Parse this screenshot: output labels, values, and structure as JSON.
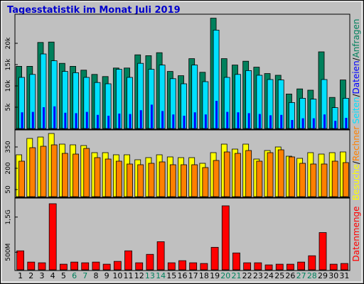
{
  "title": "Tagesstatistik im Monat Juli 2019",
  "separator": "/",
  "x_axis": {
    "categories": [
      "1",
      "2",
      "3",
      "4",
      "5",
      "6",
      "7",
      "8",
      "9",
      "10",
      "11",
      "12",
      "13",
      "14",
      "15",
      "16",
      "17",
      "18",
      "19",
      "20",
      "21",
      "22",
      "23",
      "24",
      "25",
      "26",
      "27",
      "28",
      "29",
      "30",
      "31"
    ],
    "colors": [
      "#000000",
      "#000000",
      "#000000",
      "#000000",
      "#000000",
      "#00805c",
      "#00805c",
      "#000000",
      "#000000",
      "#000000",
      "#000000",
      "#000000",
      "#00805c",
      "#00805c",
      "#000000",
      "#000000",
      "#000000",
      "#000000",
      "#000000",
      "#00805c",
      "#00805c",
      "#000000",
      "#000000",
      "#000000",
      "#000000",
      "#000000",
      "#00805c",
      "#00805c",
      "#000000",
      "#000000",
      "#000000"
    ]
  },
  "chart_data": [
    {
      "type": "bar",
      "ylim": [
        0,
        26500
      ],
      "yticks": [
        {
          "value": 5000,
          "label": "5k"
        },
        {
          "value": 10000,
          "label": "10k"
        },
        {
          "value": 15000,
          "label": "15k"
        },
        {
          "value": 20000,
          "label": "20k"
        }
      ],
      "legend_order": [
        1,
        2,
        0
      ],
      "series": [
        {
          "name": "Anfragen",
          "color": "#00805c",
          "values": [
            14600,
            14600,
            20200,
            20300,
            15300,
            14600,
            13700,
            12700,
            12200,
            14200,
            14200,
            17300,
            17100,
            17800,
            13400,
            12400,
            16400,
            13200,
            25900,
            16400,
            14900,
            15800,
            14400,
            12900,
            12500,
            8100,
            9300,
            9000,
            18000,
            7300,
            11400
          ]
        },
        {
          "name": "Seiten",
          "color": "#00e0ff",
          "values": [
            12000,
            12700,
            17500,
            15900,
            13400,
            13100,
            12000,
            10800,
            10500,
            13900,
            12000,
            15300,
            13900,
            14900,
            11700,
            10500,
            14900,
            11000,
            23100,
            12000,
            12700,
            13600,
            12500,
            11500,
            11400,
            6100,
            7100,
            6900,
            11500,
            4900,
            7100
          ]
        },
        {
          "name": "Dateien",
          "color": "#0000ff",
          "values": [
            3800,
            3900,
            5000,
            5200,
            3700,
            3600,
            3900,
            3200,
            3000,
            3500,
            3400,
            4300,
            5600,
            4100,
            3300,
            3000,
            3800,
            3300,
            6500,
            3900,
            3800,
            3600,
            3400,
            3100,
            3200,
            2000,
            2400,
            2400,
            3300,
            1800,
            2500
          ]
        }
      ]
    },
    {
      "type": "bar",
      "ylim": [
        0,
        460
      ],
      "yticks": [
        50,
        200,
        350
      ],
      "legend_order": [
        0,
        1
      ],
      "series": [
        {
          "name": "Besuche",
          "color": "#ffff00",
          "values": [
            295,
            410,
            420,
            445,
            370,
            365,
            360,
            310,
            310,
            295,
            295,
            260,
            275,
            295,
            280,
            275,
            275,
            235,
            310,
            370,
            335,
            370,
            265,
            325,
            350,
            285,
            270,
            310,
            300,
            310,
            315
          ]
        },
        {
          "name": "Rechner",
          "color": "#ff8000",
          "values": [
            250,
            345,
            355,
            365,
            305,
            300,
            340,
            275,
            265,
            250,
            230,
            225,
            235,
            245,
            225,
            225,
            225,
            205,
            255,
            315,
            305,
            325,
            250,
            310,
            330,
            280,
            235,
            230,
            230,
            250,
            240
          ]
        }
      ]
    },
    {
      "type": "bar",
      "ylim": [
        0,
        2000
      ],
      "yticks": [
        {
          "value": 500,
          "label": "500M"
        },
        {
          "value": 1500,
          "label": "1,5G"
        }
      ],
      "legend_order": [
        0
      ],
      "series": [
        {
          "name": "Datenmenge",
          "color": "#ff0000",
          "values": [
            540,
            220,
            200,
            1880,
            160,
            220,
            200,
            220,
            160,
            240,
            540,
            200,
            440,
            800,
            200,
            260,
            200,
            180,
            640,
            1820,
            480,
            200,
            200,
            140,
            160,
            160,
            220,
            400,
            1060,
            160,
            180
          ]
        }
      ]
    }
  ]
}
